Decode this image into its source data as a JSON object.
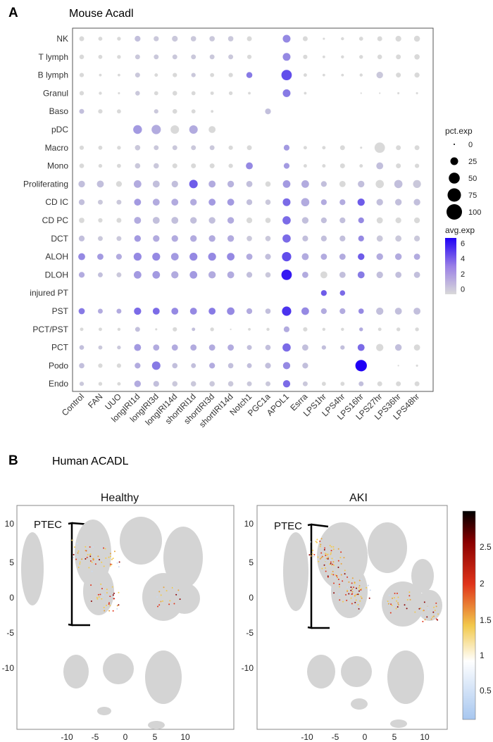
{
  "panelA": {
    "letter": "A",
    "title": "Mouse Acadl",
    "chart_data": {
      "type": "dotplot",
      "title": "Mouse Acadl",
      "rows": [
        "NK",
        "T lymph",
        "B lymph",
        "Granul",
        "Baso",
        "pDC",
        "Macro",
        "Mono",
        "Proliferating",
        "CD IC",
        "CD PC",
        "DCT",
        "ALOH",
        "DLOH",
        "injured PT",
        "PST",
        "PCT/PST",
        "PCT",
        "Podo",
        "Endo"
      ],
      "columns": [
        "Control",
        "FAN",
        "UUO",
        "longIRI1d",
        "longIRI3d",
        "longIRI14d",
        "shortIRI1d",
        "shortIRI3d",
        "shortIRI14d",
        "Notch1",
        "PGC1a",
        "APOL1",
        "Esrra",
        "LPS1hr",
        "LPS4hr",
        "LPS16hr",
        "LPS27hr",
        "LPS36hr",
        "LPS48hr"
      ],
      "pct_exp": [
        [
          10,
          7,
          6,
          14,
          11,
          14,
          12,
          12,
          12,
          10,
          0,
          25,
          10,
          2,
          4,
          7,
          10,
          14,
          15
        ],
        [
          9,
          7,
          6,
          10,
          10,
          10,
          10,
          10,
          10,
          8,
          0,
          25,
          8,
          3,
          4,
          6,
          9,
          10,
          12
        ],
        [
          8,
          3,
          3,
          10,
          5,
          8,
          8,
          7,
          8,
          15,
          0,
          45,
          5,
          3,
          3,
          4,
          18,
          10,
          11
        ],
        [
          8,
          4,
          2,
          9,
          7,
          9,
          7,
          5,
          6,
          3,
          0,
          25,
          3,
          0,
          0,
          1,
          1,
          2,
          2
        ],
        [
          10,
          8,
          7,
          0,
          8,
          9,
          7,
          3,
          0,
          0,
          14,
          0,
          0,
          0,
          0,
          0,
          0,
          0,
          0
        ],
        [
          0,
          0,
          0,
          32,
          36,
          30,
          30,
          20,
          0,
          0,
          0,
          0,
          0,
          0,
          0,
          0,
          0,
          0,
          0
        ],
        [
          8,
          7,
          6,
          12,
          10,
          10,
          10,
          10,
          8,
          10,
          0,
          14,
          5,
          5,
          10,
          2,
          45,
          10,
          10
        ],
        [
          9,
          6,
          7,
          12,
          12,
          10,
          10,
          10,
          8,
          20,
          0,
          14,
          5,
          5,
          10,
          5,
          20,
          10,
          8
        ],
        [
          18,
          20,
          14,
          24,
          20,
          18,
          30,
          20,
          18,
          16,
          12,
          24,
          24,
          14,
          16,
          18,
          28,
          28,
          26
        ],
        [
          14,
          10,
          10,
          20,
          20,
          20,
          18,
          20,
          20,
          14,
          12,
          25,
          28,
          14,
          14,
          22,
          18,
          18,
          18
        ],
        [
          12,
          8,
          10,
          20,
          20,
          20,
          18,
          18,
          18,
          14,
          12,
          28,
          18,
          14,
          14,
          14,
          16,
          14,
          14
        ],
        [
          14,
          10,
          10,
          18,
          18,
          18,
          18,
          18,
          18,
          12,
          12,
          28,
          14,
          14,
          14,
          14,
          16,
          16,
          14
        ],
        [
          20,
          16,
          14,
          26,
          26,
          24,
          26,
          26,
          24,
          16,
          14,
          36,
          20,
          16,
          16,
          18,
          18,
          18,
          16
        ],
        [
          14,
          10,
          10,
          24,
          24,
          22,
          24,
          22,
          20,
          14,
          12,
          45,
          16,
          20,
          16,
          20,
          18,
          16,
          16
        ],
        [
          0,
          0,
          0,
          0,
          0,
          0,
          0,
          0,
          0,
          0,
          0,
          0,
          0,
          14,
          12,
          0,
          0,
          0,
          0
        ],
        [
          16,
          10,
          10,
          22,
          20,
          20,
          20,
          20,
          24,
          14,
          12,
          36,
          24,
          14,
          14,
          12,
          22,
          20,
          20
        ],
        [
          5,
          5,
          4,
          10,
          2,
          8,
          5,
          6,
          1,
          3,
          4,
          14,
          8,
          4,
          4,
          6,
          5,
          6,
          6
        ],
        [
          9,
          7,
          6,
          20,
          16,
          16,
          16,
          16,
          16,
          10,
          12,
          28,
          16,
          8,
          8,
          20,
          22,
          18,
          16
        ],
        [
          12,
          8,
          8,
          14,
          30,
          12,
          10,
          14,
          12,
          10,
          14,
          22,
          14,
          0,
          0,
          55,
          0,
          1,
          2
        ],
        [
          8,
          6,
          5,
          18,
          14,
          12,
          12,
          12,
          12,
          10,
          10,
          22,
          10,
          7,
          7,
          10,
          10,
          10,
          10
        ]
      ],
      "avg_exp": [
        [
          0,
          0,
          0,
          0.5,
          0.3,
          0.3,
          0.3,
          0.3,
          0.3,
          0,
          0,
          2,
          0,
          0,
          0,
          0,
          0,
          0,
          0
        ],
        [
          0,
          0,
          0,
          0.3,
          0.3,
          0.3,
          0.3,
          0.3,
          0.3,
          0,
          0,
          2,
          0,
          0,
          0,
          0,
          0,
          0,
          0
        ],
        [
          0,
          0,
          0,
          0.3,
          0,
          0,
          0.3,
          0,
          0,
          2.5,
          0,
          4,
          0,
          0,
          0,
          0,
          0.3,
          0,
          0
        ],
        [
          0,
          0,
          0,
          0.3,
          0,
          0,
          0,
          0,
          0,
          0,
          0,
          2.5,
          0,
          0,
          0,
          0,
          0,
          0,
          0
        ],
        [
          0.5,
          0,
          0,
          0,
          0.3,
          0,
          0,
          0,
          0,
          0,
          0.5,
          0,
          0,
          0,
          0,
          0,
          0,
          0,
          0
        ],
        [
          0,
          0,
          0,
          1.5,
          1,
          0,
          1,
          0,
          0,
          0,
          0,
          0,
          0,
          0,
          0,
          0,
          0,
          0,
          0
        ],
        [
          0,
          0,
          0,
          0.3,
          0.3,
          0.3,
          0.3,
          0.3,
          0,
          0,
          0,
          1.5,
          0,
          0,
          0,
          0,
          0,
          0,
          0
        ],
        [
          0,
          0,
          0,
          0.3,
          0.3,
          0,
          0,
          0,
          0,
          2,
          0,
          1.5,
          0,
          0,
          0,
          0,
          0.5,
          0,
          0
        ],
        [
          0.5,
          0.5,
          0,
          1,
          0.5,
          0.5,
          3.5,
          1,
          0.8,
          0.5,
          0,
          1.5,
          1,
          0.5,
          0,
          0.5,
          0,
          0.5,
          0.3
        ],
        [
          0.5,
          0.3,
          0.3,
          1.5,
          1,
          1,
          1,
          1.5,
          1.5,
          0.5,
          0.3,
          3,
          1,
          1,
          1,
          3.5,
          0.5,
          0.5,
          0.5
        ],
        [
          0,
          0,
          0,
          1,
          0.5,
          0.5,
          0.5,
          0.5,
          1,
          0,
          0,
          3,
          0.5,
          0.5,
          0.5,
          2,
          0,
          0,
          0
        ],
        [
          0.5,
          0.3,
          0.3,
          1.5,
          1,
          1,
          1,
          1,
          1,
          0.3,
          0.3,
          3,
          0.5,
          0.5,
          0.5,
          2,
          0.3,
          0.3,
          0.3
        ],
        [
          2,
          1.5,
          1,
          2,
          2,
          1.5,
          2,
          2,
          2,
          1,
          0.5,
          4,
          1,
          1,
          1,
          3.5,
          1,
          1,
          1
        ],
        [
          1,
          0.5,
          0.3,
          1.5,
          1.5,
          1,
          1.5,
          1,
          1,
          0.5,
          0.3,
          6,
          1,
          0,
          0.5,
          2.5,
          0.5,
          0.5,
          0.5
        ],
        [
          0,
          0,
          0,
          0,
          0,
          0,
          0,
          0,
          0,
          0,
          0,
          0,
          0,
          3.5,
          3,
          0,
          0,
          0,
          0
        ],
        [
          2.5,
          1,
          1,
          3,
          3,
          2,
          2,
          2.5,
          2,
          1,
          0.5,
          5,
          2,
          1,
          1,
          2,
          0.5,
          0.5,
          0.5
        ],
        [
          0,
          0,
          0,
          0.5,
          0,
          0,
          0.5,
          0,
          0,
          0,
          0,
          1,
          0,
          0,
          0,
          1,
          0,
          0,
          0
        ],
        [
          0.5,
          0.3,
          0.3,
          1.5,
          1,
          1,
          1,
          1,
          1,
          0.5,
          0.5,
          3,
          0.5,
          0.5,
          0.5,
          3,
          0,
          0.5,
          0
        ],
        [
          0.5,
          0,
          0,
          1,
          2.5,
          0.5,
          0.5,
          1,
          0.5,
          0.5,
          0.5,
          2,
          0.5,
          0,
          0,
          7,
          0,
          0,
          0
        ],
        [
          0.3,
          0,
          0,
          1,
          0.5,
          0.3,
          0.3,
          0.3,
          0.3,
          0.3,
          0.3,
          3,
          0.3,
          0,
          0,
          0.5,
          0,
          0,
          0
        ]
      ],
      "legend_size": {
        "title": "pct.exp",
        "values": [
          0,
          25,
          50,
          75,
          100
        ]
      },
      "legend_color": {
        "title": "avg.exp",
        "ticks": [
          6,
          4,
          2,
          0
        ],
        "low_color": "#d9d9d9",
        "high_color": "#1f00f5"
      }
    }
  },
  "panelB": {
    "letter": "B",
    "title": "Human ACADL",
    "umaps": [
      {
        "title": "Healthy",
        "annotation": "PTEC",
        "yticks": [
          "10",
          "5",
          "0",
          "-5",
          "-10"
        ],
        "xticks": [
          "-10",
          "-5",
          "0",
          "5",
          "10"
        ]
      },
      {
        "title": "AKI",
        "annotation": "PTEC",
        "yticks": [
          "10",
          "5",
          "0",
          "-5",
          "-10"
        ],
        "xticks": [
          "-10",
          "-5",
          "0",
          "5",
          "10"
        ]
      }
    ],
    "colorbar": {
      "ticks": [
        "2.5",
        "2",
        "1.5",
        "1",
        "0.5"
      ],
      "colors": [
        "#000000",
        "#8b0000",
        "#e0341a",
        "#f2c94c",
        "#ffffff",
        "#a6c6ef"
      ]
    }
  }
}
